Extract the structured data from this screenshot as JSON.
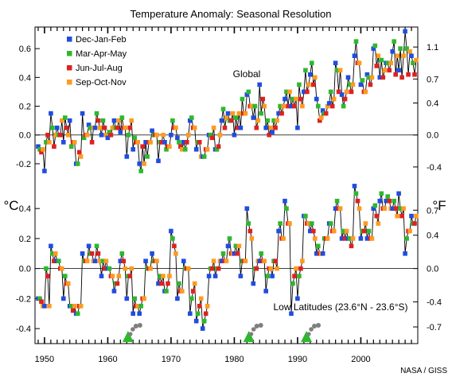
{
  "chart_data": {
    "type": "line",
    "title": "Temperature Anomaly:  Seasonal Resolution",
    "xlim": [
      1948.5,
      2009
    ],
    "x_ticks": [
      1950,
      1960,
      1970,
      1980,
      1990,
      2000
    ],
    "left_unit": "°C",
    "right_unit": "°F",
    "credit": "NASA / GISS",
    "colors": {
      "Dec-Jan-Feb": "#1f4de0",
      "Mar-Apr-May": "#2db82d",
      "Jun-Jul-Aug": "#e02020",
      "Sep-Oct-Nov": "#ff9a1f",
      "line": "#000000",
      "volcano": "#2db82d",
      "plume": "#7f7f7f"
    },
    "legend": [
      {
        "label": "Dec-Jan-Feb",
        "season": "Dec-Jan-Feb"
      },
      {
        "label": "Mar-Apr-May",
        "season": "Mar-Apr-May"
      },
      {
        "label": "Jun-Jul-Aug",
        "season": "Jun-Jul-Aug"
      },
      {
        "label": "Sep-Oct-Nov",
        "season": "Sep-Oct-Nov"
      }
    ],
    "volcanoes": [
      1963.2,
      1982.3,
      1991.4
    ],
    "panels": [
      {
        "label": "Global",
        "ylim": [
          -0.3,
          0.75
        ],
        "celsius_ticks": [
          -0.2,
          0.0,
          0.2,
          0.4,
          0.6
        ],
        "celsius_tick_labels": [
          "-0.2",
          "0.0",
          "0.2",
          "0.4",
          "0.6"
        ],
        "fahrenheit_ticks": [
          -0.4,
          0.0,
          0.4,
          0.7,
          1.1
        ],
        "fahrenheit_tick_labels": [
          "-0.4",
          "0.0",
          "0.4",
          "0.7",
          "1.1"
        ],
        "series": [
          {
            "name": "Dec-Jan-Feb",
            "values": [
              -0.08,
              -0.25,
              0.15,
              0.05,
              -0.05,
              0.1,
              -0.2,
              0.15,
              0.07,
              0.05,
              0.0,
              -0.02,
              0.1,
              0.02,
              -0.15,
              -0.1,
              -0.2,
              -0.05,
              0.03,
              -0.18,
              -0.05,
              0.0,
              -0.02,
              -0.05,
              0.1,
              -0.1,
              -0.15,
              0.0,
              -0.1,
              0.1,
              0.15,
              0.0,
              0.05,
              0.28,
              0.12,
              0.35,
              0.05,
              0.02,
              0.15,
              0.25,
              0.2,
              0.05,
              0.3,
              0.42,
              0.25,
              0.17,
              0.22,
              0.5,
              0.28,
              0.4,
              0.55,
              0.35,
              0.42,
              0.6,
              0.4,
              0.5,
              0.58,
              0.45,
              0.72,
              0.55
            ]
          },
          {
            "name": "Mar-Apr-May",
            "values": [
              -0.1,
              -0.05,
              0.05,
              0.0,
              0.12,
              -0.08,
              -0.2,
              -0.02,
              0.05,
              0.15,
              0.1,
              0.02,
              0.05,
              0.12,
              0.0,
              -0.02,
              -0.25,
              -0.15,
              0.0,
              -0.05,
              -0.1,
              0.1,
              -0.05,
              -0.1,
              0.12,
              -0.05,
              -0.15,
              0.0,
              -0.1,
              0.18,
              0.1,
              0.12,
              0.25,
              0.3,
              0.2,
              0.15,
              0.1,
              0.1,
              0.2,
              0.3,
              0.25,
              0.35,
              0.45,
              0.5,
              0.2,
              0.15,
              0.3,
              0.45,
              0.2,
              0.35,
              0.65,
              0.38,
              0.4,
              0.62,
              0.52,
              0.5,
              0.65,
              0.6,
              0.6,
              0.5
            ]
          },
          {
            "name": "Jun-Jul-Aug",
            "values": [
              -0.12,
              0.0,
              -0.08,
              0.0,
              0.05,
              -0.05,
              -0.12,
              0.0,
              -0.05,
              0.1,
              0.05,
              0.0,
              0.05,
              0.05,
              0.05,
              -0.05,
              -0.08,
              -0.05,
              0.0,
              -0.05,
              -0.08,
              0.05,
              -0.08,
              -0.05,
              0.05,
              -0.05,
              -0.1,
              -0.02,
              -0.08,
              0.05,
              0.1,
              0.05,
              0.15,
              0.2,
              0.05,
              0.25,
              0.0,
              0.05,
              0.15,
              0.2,
              0.2,
              0.25,
              0.3,
              0.35,
              0.1,
              0.15,
              0.2,
              0.3,
              0.25,
              0.3,
              0.5,
              0.3,
              0.35,
              0.48,
              0.4,
              0.45,
              0.42,
              0.4,
              0.42,
              0.42
            ]
          },
          {
            "name": "Sep-Oct-Nov",
            "values": [
              -0.1,
              -0.05,
              0.0,
              0.1,
              0.0,
              -0.05,
              -0.15,
              0.0,
              0.05,
              0.05,
              0.0,
              0.05,
              0.1,
              0.05,
              0.1,
              -0.05,
              -0.2,
              -0.05,
              0.0,
              0.0,
              -0.08,
              0.05,
              -0.1,
              0.0,
              0.05,
              -0.15,
              -0.1,
              0.05,
              0.0,
              0.12,
              0.15,
              0.15,
              0.15,
              0.2,
              0.1,
              0.2,
              0.05,
              0.1,
              0.2,
              0.3,
              0.25,
              0.2,
              0.35,
              0.4,
              0.12,
              0.2,
              0.25,
              0.45,
              0.3,
              0.35,
              0.5,
              0.3,
              0.4,
              0.55,
              0.45,
              0.5,
              0.55,
              0.55,
              0.58,
              0.52
            ]
          }
        ]
      },
      {
        "label": "Low Latitudes (23.6°N - 23.6°S)",
        "ylim": [
          -0.5,
          0.65
        ],
        "celsius_ticks": [
          -0.4,
          -0.2,
          0.0,
          0.2,
          0.4
        ],
        "celsius_tick_labels": [
          "-0.4",
          "-0.2",
          "0.0",
          "0.2",
          "0.4"
        ],
        "fahrenheit_ticks": [
          -0.7,
          -0.4,
          0.0,
          0.4,
          0.7
        ],
        "fahrenheit_tick_labels": [
          "-0.7",
          "-0.4",
          "0.0",
          "0.4",
          "0.7"
        ],
        "series": [
          {
            "name": "Dec-Jan-Feb",
            "values": [
              -0.2,
              -0.25,
              0.15,
              0.05,
              -0.2,
              -0.25,
              -0.3,
              0.1,
              0.15,
              0.05,
              -0.05,
              0.0,
              -0.15,
              0.05,
              -0.2,
              -0.3,
              -0.3,
              0.05,
              0.1,
              -0.1,
              -0.15,
              0.25,
              -0.2,
              0.05,
              -0.3,
              -0.35,
              -0.4,
              -0.05,
              -0.05,
              0.05,
              0.15,
              0.1,
              -0.05,
              0.4,
              -0.1,
              0.05,
              -0.15,
              -0.05,
              0.25,
              0.45,
              -0.3,
              -0.2,
              0.35,
              0.25,
              0.1,
              0.1,
              0.3,
              0.4,
              0.2,
              0.2,
              0.55,
              0.2,
              0.2,
              0.4,
              0.45,
              0.45,
              0.4,
              0.5,
              0.1,
              0.35
            ]
          },
          {
            "name": "Mar-Apr-May",
            "values": [
              -0.2,
              0.0,
              0.1,
              0.05,
              -0.05,
              -0.25,
              -0.3,
              0.05,
              0.1,
              0.15,
              0.05,
              0.0,
              -0.1,
              0.1,
              -0.05,
              -0.2,
              -0.25,
              0.0,
              0.05,
              -0.05,
              -0.15,
              0.2,
              -0.1,
              0.0,
              -0.2,
              -0.3,
              -0.35,
              0.0,
              0.0,
              0.1,
              0.2,
              0.15,
              0.05,
              0.3,
              0.0,
              0.1,
              -0.05,
              0.05,
              0.3,
              0.4,
              -0.1,
              -0.05,
              0.35,
              0.3,
              0.15,
              0.2,
              0.3,
              0.45,
              0.25,
              0.2,
              0.5,
              0.25,
              0.25,
              0.42,
              0.5,
              0.48,
              0.45,
              0.4,
              0.2,
              0.3
            ]
          },
          {
            "name": "Jun-Jul-Aug",
            "values": [
              -0.22,
              -0.05,
              0.05,
              0.0,
              -0.1,
              -0.28,
              -0.25,
              0.05,
              0.1,
              0.1,
              0.0,
              -0.05,
              -0.1,
              0.05,
              -0.05,
              -0.25,
              -0.2,
              0.0,
              0.05,
              -0.1,
              -0.1,
              0.15,
              -0.15,
              0.0,
              -0.15,
              -0.25,
              -0.3,
              0.0,
              0.0,
              0.05,
              0.1,
              0.1,
              0.05,
              0.25,
              0.0,
              0.05,
              0.0,
              0.05,
              0.2,
              0.3,
              -0.05,
              0.0,
              0.3,
              0.25,
              0.1,
              0.2,
              0.25,
              0.4,
              0.2,
              0.15,
              0.45,
              0.25,
              0.2,
              0.35,
              0.4,
              0.45,
              0.4,
              0.35,
              0.25,
              0.3
            ]
          },
          {
            "name": "Sep-Oct-Nov",
            "values": [
              -0.25,
              -0.25,
              0.1,
              0.0,
              -0.1,
              -0.25,
              -0.25,
              0.05,
              0.05,
              0.05,
              0.05,
              -0.05,
              -0.05,
              0.0,
              0.0,
              -0.25,
              -0.2,
              0.0,
              0.05,
              -0.05,
              -0.05,
              0.1,
              -0.15,
              0.0,
              -0.1,
              -0.2,
              -0.25,
              0.05,
              0.05,
              0.05,
              0.1,
              0.15,
              0.05,
              0.2,
              0.05,
              0.05,
              0.0,
              0.0,
              0.2,
              0.3,
              0.0,
              0.05,
              0.3,
              0.2,
              0.1,
              0.2,
              0.25,
              0.4,
              0.25,
              0.2,
              0.4,
              0.3,
              0.2,
              0.3,
              0.4,
              0.4,
              0.35,
              0.4,
              0.25,
              0.35
            ]
          }
        ]
      }
    ]
  }
}
